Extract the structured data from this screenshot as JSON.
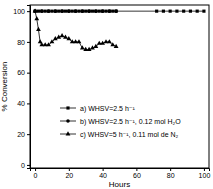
{
  "chart_data": {
    "type": "line",
    "x_label": "Hours",
    "y_label": "% Conversion",
    "xlim": [
      -3,
      103
    ],
    "ylim": [
      -2,
      104
    ],
    "xticks": [
      0,
      20,
      40,
      60,
      80,
      100
    ],
    "yticks": [
      0,
      20,
      40,
      60,
      80,
      100
    ],
    "legend": "lower right",
    "series": [
      {
        "name": "a) WHSV=2.5 h⁻¹",
        "color": "#000000",
        "marker": "square",
        "line_style": "solid",
        "x": [
          0,
          2,
          4,
          6,
          8,
          10,
          12,
          14,
          16,
          18,
          20,
          22,
          24,
          26,
          28,
          30,
          32,
          34,
          36,
          38,
          40,
          42,
          44,
          46,
          48,
          72,
          76,
          80,
          84,
          88,
          92,
          96,
          100
        ],
        "values": [
          100,
          100,
          100,
          100,
          100,
          100,
          100,
          100,
          100,
          100,
          100,
          100,
          100,
          100,
          100,
          100,
          100,
          100,
          100,
          100,
          100,
          100,
          100,
          100,
          100,
          100,
          100,
          100,
          100,
          100,
          100,
          100,
          100
        ]
      },
      {
        "name": "b) WHSV=2.5 h⁻¹, 0.12 mol H₂O",
        "color": "#000000",
        "marker": "circle",
        "line_style": "solid",
        "x": [
          0,
          4,
          8,
          12,
          16,
          20,
          24,
          28,
          32,
          36,
          40,
          44,
          48
        ],
        "values": [
          100,
          100,
          100,
          100,
          100,
          100,
          100,
          100,
          100,
          100,
          100,
          100,
          100
        ]
      },
      {
        "name": "c) WHSV=5 h⁻¹, 0.11 mol de N₂",
        "color": "#000000",
        "marker": "triangle",
        "line_style": "solid",
        "x": [
          0,
          1,
          2,
          3,
          4,
          6,
          8,
          10,
          12,
          14,
          16,
          18,
          20,
          22,
          24,
          26,
          28,
          30,
          32,
          34,
          36,
          38,
          40,
          42,
          44,
          46,
          48
        ],
        "values": [
          100,
          95,
          88,
          80,
          78,
          78,
          78,
          80,
          82,
          83,
          84,
          83,
          82,
          80,
          80,
          80,
          76,
          75,
          75,
          76,
          77,
          79,
          79,
          80,
          80,
          78,
          77
        ]
      }
    ]
  }
}
